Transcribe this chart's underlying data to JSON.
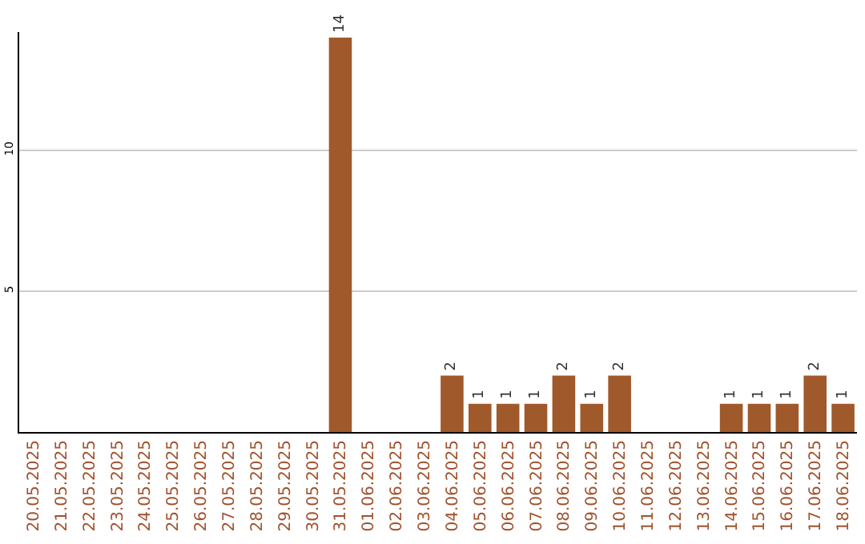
{
  "chart_data": {
    "type": "bar",
    "categories": [
      "20.05.2025",
      "21.05.2025",
      "22.05.2025",
      "23.05.2025",
      "24.05.2025",
      "25.05.2025",
      "26.05.2025",
      "27.05.2025",
      "28.05.2025",
      "29.05.2025",
      "30.05.2025",
      "31.05.2025",
      "01.06.2025",
      "02.06.2025",
      "03.06.2025",
      "04.06.2025",
      "05.06.2025",
      "06.06.2025",
      "07.06.2025",
      "08.06.2025",
      "09.06.2025",
      "10.06.2025",
      "11.06.2025",
      "12.06.2025",
      "13.06.2025",
      "14.06.2025",
      "15.06.2025",
      "16.06.2025",
      "17.06.2025",
      "18.06.2025"
    ],
    "values": [
      0,
      0,
      0,
      0,
      0,
      0,
      0,
      0,
      0,
      0,
      0,
      14,
      0,
      0,
      0,
      2,
      1,
      1,
      1,
      2,
      1,
      2,
      0,
      0,
      0,
      1,
      1,
      1,
      2,
      1
    ],
    "value_labels": [
      null,
      null,
      null,
      null,
      null,
      null,
      null,
      null,
      null,
      null,
      null,
      "14",
      null,
      null,
      null,
      "2",
      "1",
      "1",
      "1",
      "2",
      "1",
      "2",
      null,
      null,
      null,
      "1",
      "1",
      "1",
      "2",
      "1"
    ],
    "color": "#a0592a",
    "ylim": [
      0,
      14.2
    ],
    "yticks": [
      5,
      10
    ],
    "grid": "y"
  }
}
